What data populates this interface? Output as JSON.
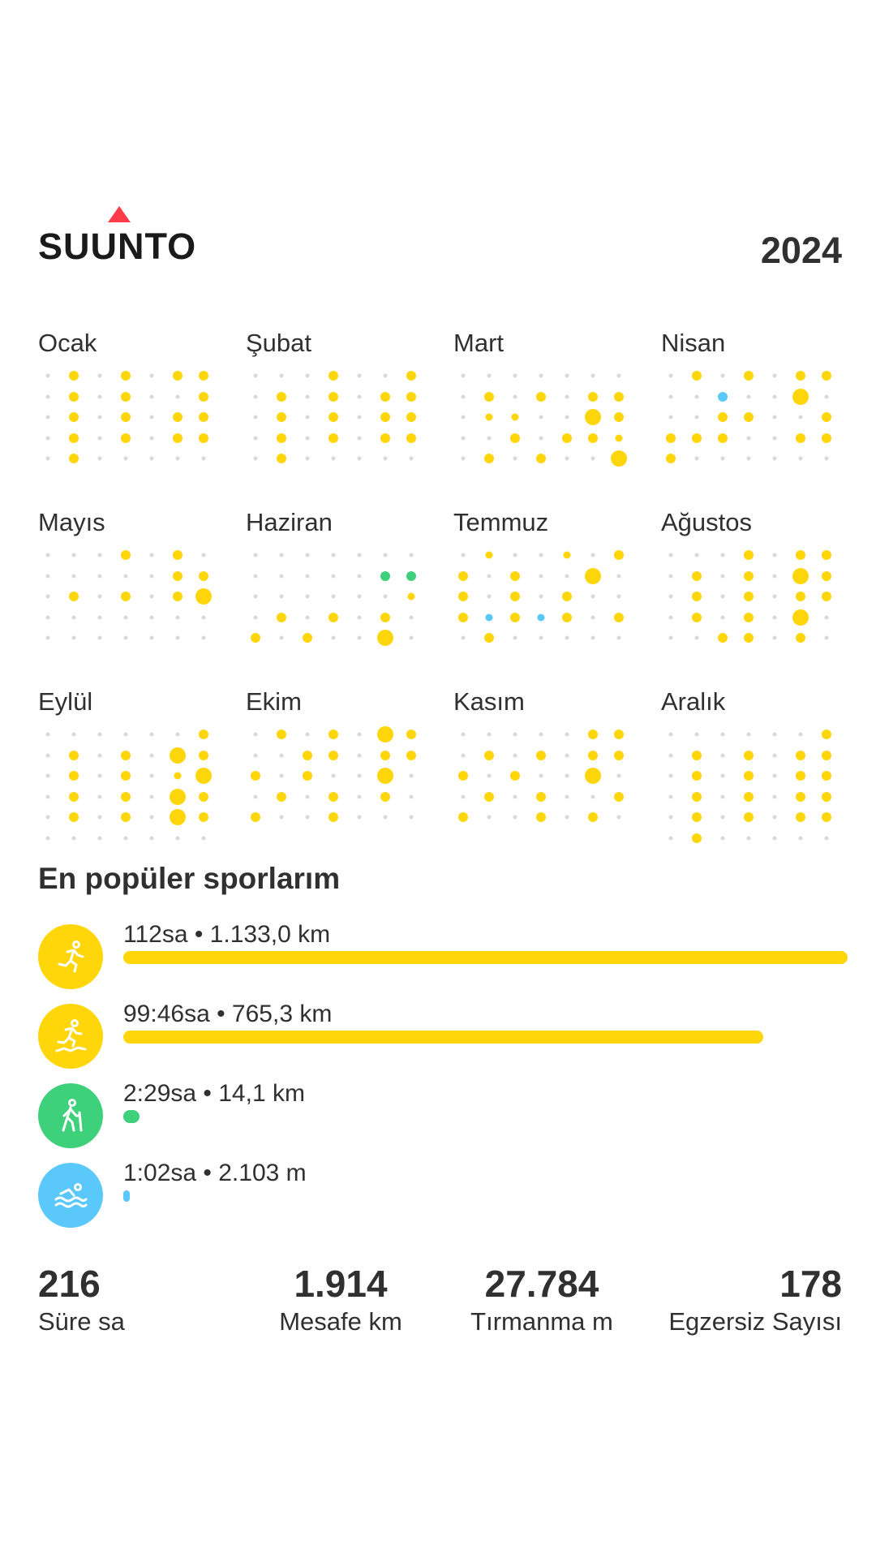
{
  "header": {
    "brand": "SUUNTO",
    "year": "2024",
    "brand_accent_color": "#ff3b4a"
  },
  "colors": {
    "yellow": "#ffd60a",
    "green": "#3ed07a",
    "blue": "#5ac8fa",
    "inactive_dot": "#d9d9d9"
  },
  "calendar": {
    "legend": "Each month is a 7-column weekday grid; dot = day; size = activity intensity (0 = none, 1 = small, 2 = medium, 3 = large); letter = sport color (y = yellow, g = green, b = blue)",
    "months": [
      {
        "name": "Ocak",
        "rows": [
          [
            "0",
            "2y",
            "0",
            "2y",
            "0",
            "2y",
            "2y"
          ],
          [
            "0",
            "2y",
            "0",
            "2y",
            "0",
            "0",
            "2y"
          ],
          [
            "0",
            "2y",
            "0",
            "2y",
            "0",
            "2y",
            "2y"
          ],
          [
            "0",
            "2y",
            "0",
            "2y",
            "0",
            "2y",
            "2y"
          ],
          [
            "0",
            "2y",
            "0",
            "0",
            "0",
            "0",
            "0"
          ]
        ]
      },
      {
        "name": "Şubat",
        "rows": [
          [
            "0",
            "0",
            "0",
            "2y",
            "0",
            "0",
            "2y"
          ],
          [
            "0",
            "2y",
            "0",
            "2y",
            "0",
            "2y",
            "2y"
          ],
          [
            "0",
            "2y",
            "0",
            "2y",
            "0",
            "2y",
            "2y"
          ],
          [
            "0",
            "2y",
            "0",
            "2y",
            "0",
            "2y",
            "2y"
          ],
          [
            "0",
            "2y",
            "0",
            "0",
            "0",
            "0",
            "0"
          ]
        ]
      },
      {
        "name": "Mart",
        "rows": [
          [
            "0",
            "0",
            "0",
            "0",
            "0",
            "0",
            "0"
          ],
          [
            "0",
            "2y",
            "0",
            "2y",
            "0",
            "2y",
            "2y"
          ],
          [
            "0",
            "1y",
            "1y",
            "0",
            "0",
            "3y",
            "2y"
          ],
          [
            "0",
            "0",
            "2y",
            "0",
            "2y",
            "2y",
            "1y"
          ],
          [
            "0",
            "2y",
            "0",
            "2y",
            "0",
            "0",
            "3y"
          ]
        ]
      },
      {
        "name": "Nisan",
        "rows": [
          [
            "0",
            "2y",
            "0",
            "2y",
            "0",
            "2y",
            "2y"
          ],
          [
            "0",
            "0",
            "2b",
            "0",
            "0",
            "3y",
            "0"
          ],
          [
            "0",
            "0",
            "2y",
            "2y",
            "0",
            "0",
            "2y"
          ],
          [
            "2y",
            "2y",
            "2y",
            "0",
            "0",
            "2y",
            "2y"
          ],
          [
            "2y",
            "0",
            "0",
            "0",
            "0",
            "0",
            "0"
          ]
        ]
      },
      {
        "name": "Mayıs",
        "rows": [
          [
            "0",
            "0",
            "0",
            "2y",
            "0",
            "2y",
            "0"
          ],
          [
            "0",
            "0",
            "0",
            "0",
            "0",
            "2y",
            "2y"
          ],
          [
            "0",
            "2y",
            "0",
            "2y",
            "0",
            "2y",
            "3y"
          ],
          [
            "0",
            "0",
            "0",
            "0",
            "0",
            "0",
            "0"
          ],
          [
            "0",
            "0",
            "0",
            "0",
            "0",
            "0",
            "0"
          ]
        ]
      },
      {
        "name": "Haziran",
        "rows": [
          [
            "0",
            "0",
            "0",
            "0",
            "0",
            "0",
            "0"
          ],
          [
            "0",
            "0",
            "0",
            "0",
            "0",
            "2g",
            "2g"
          ],
          [
            "0",
            "0",
            "0",
            "0",
            "0",
            "0",
            "1y"
          ],
          [
            "0",
            "2y",
            "0",
            "2y",
            "0",
            "2y",
            "0"
          ],
          [
            "2y",
            "0",
            "2y",
            "0",
            "0",
            "3y",
            "0"
          ]
        ]
      },
      {
        "name": "Temmuz",
        "rows": [
          [
            "0",
            "1y",
            "0",
            "0",
            "1y",
            "0",
            "2y"
          ],
          [
            "2y",
            "0",
            "2y",
            "0",
            "0",
            "3y",
            "0"
          ],
          [
            "2y",
            "0",
            "2y",
            "0",
            "2y",
            "0",
            "0"
          ],
          [
            "2y",
            "1b",
            "2y",
            "1b",
            "2y",
            "0",
            "2y"
          ],
          [
            "0",
            "2y",
            "0",
            "0",
            "0",
            "0",
            "0"
          ]
        ]
      },
      {
        "name": "Ağustos",
        "rows": [
          [
            "0",
            "0",
            "0",
            "2y",
            "0",
            "2y",
            "2y"
          ],
          [
            "0",
            "2y",
            "0",
            "2y",
            "0",
            "3y",
            "2y"
          ],
          [
            "0",
            "2y",
            "0",
            "2y",
            "0",
            "2y",
            "2y"
          ],
          [
            "0",
            "2y",
            "0",
            "2y",
            "0",
            "3y",
            "0"
          ],
          [
            "0",
            "0",
            "2y",
            "2y",
            "0",
            "2y",
            "0"
          ]
        ]
      },
      {
        "name": "Eylül",
        "rows": [
          [
            "0",
            "0",
            "0",
            "0",
            "0",
            "0",
            "2y"
          ],
          [
            "0",
            "2y",
            "0",
            "2y",
            "0",
            "3y",
            "2y"
          ],
          [
            "0",
            "2y",
            "0",
            "2y",
            "0",
            "1y",
            "3y"
          ],
          [
            "0",
            "2y",
            "0",
            "2y",
            "0",
            "3y",
            "2y"
          ],
          [
            "0",
            "2y",
            "0",
            "2y",
            "0",
            "3y",
            "2y"
          ],
          [
            "0",
            "0",
            "0",
            "0",
            "0",
            "0",
            "0"
          ]
        ]
      },
      {
        "name": "Ekim",
        "rows": [
          [
            "0",
            "2y",
            "0",
            "2y",
            "0",
            "3y",
            "2y"
          ],
          [
            "0",
            "0",
            "2y",
            "2y",
            "0",
            "2y",
            "2y"
          ],
          [
            "2y",
            "0",
            "2y",
            "0",
            "0",
            "3y",
            "0"
          ],
          [
            "0",
            "2y",
            "0",
            "2y",
            "0",
            "2y",
            "0"
          ],
          [
            "2y",
            "0",
            "0",
            "2y",
            "0",
            "0",
            "0"
          ]
        ]
      },
      {
        "name": "Kasım",
        "rows": [
          [
            "0",
            "0",
            "0",
            "0",
            "0",
            "2y",
            "2y"
          ],
          [
            "0",
            "2y",
            "0",
            "2y",
            "0",
            "2y",
            "2y"
          ],
          [
            "2y",
            "0",
            "2y",
            "0",
            "0",
            "3y",
            "0"
          ],
          [
            "0",
            "2y",
            "0",
            "2y",
            "0",
            "0",
            "2y"
          ],
          [
            "2y",
            "0",
            "0",
            "2y",
            "0",
            "2y",
            "0"
          ]
        ]
      },
      {
        "name": "Aralık",
        "rows": [
          [
            "0",
            "0",
            "0",
            "0",
            "0",
            "0",
            "2y"
          ],
          [
            "0",
            "2y",
            "0",
            "2y",
            "0",
            "2y",
            "2y"
          ],
          [
            "0",
            "2y",
            "0",
            "2y",
            "0",
            "2y",
            "2y"
          ],
          [
            "0",
            "2y",
            "0",
            "2y",
            "0",
            "2y",
            "2y"
          ],
          [
            "0",
            "2y",
            "0",
            "2y",
            "0",
            "2y",
            "2y"
          ],
          [
            "0",
            "2y",
            "0",
            "0",
            "0",
            "0",
            "0"
          ]
        ]
      }
    ]
  },
  "sports": {
    "title": "En popüler sporlarım",
    "items": [
      {
        "icon": "running-icon",
        "label": "112sa • 1.133,0 km",
        "color": "#ffd60a",
        "bar_fraction": 1.0
      },
      {
        "icon": "trail-running-icon",
        "label": "99:46sa • 765,3 km",
        "color": "#ffd60a",
        "bar_fraction": 0.883
      },
      {
        "icon": "hiking-icon",
        "label": "2:29sa • 14,1 km",
        "color": "#3ed07a",
        "bar_fraction": 0.022
      },
      {
        "icon": "swimming-icon",
        "label": "1:02sa • 2.103 m",
        "color": "#5ac8fa",
        "bar_fraction": 0.009
      }
    ]
  },
  "stats": [
    {
      "value": "216",
      "label": "Süre sa",
      "align": "left"
    },
    {
      "value": "1.914",
      "label": "Mesafe km",
      "align": "center"
    },
    {
      "value": "27.784",
      "label": "Tırmanma m",
      "align": "center"
    },
    {
      "value": "178",
      "label": "Egzersiz Sayısı",
      "align": "right"
    }
  ]
}
